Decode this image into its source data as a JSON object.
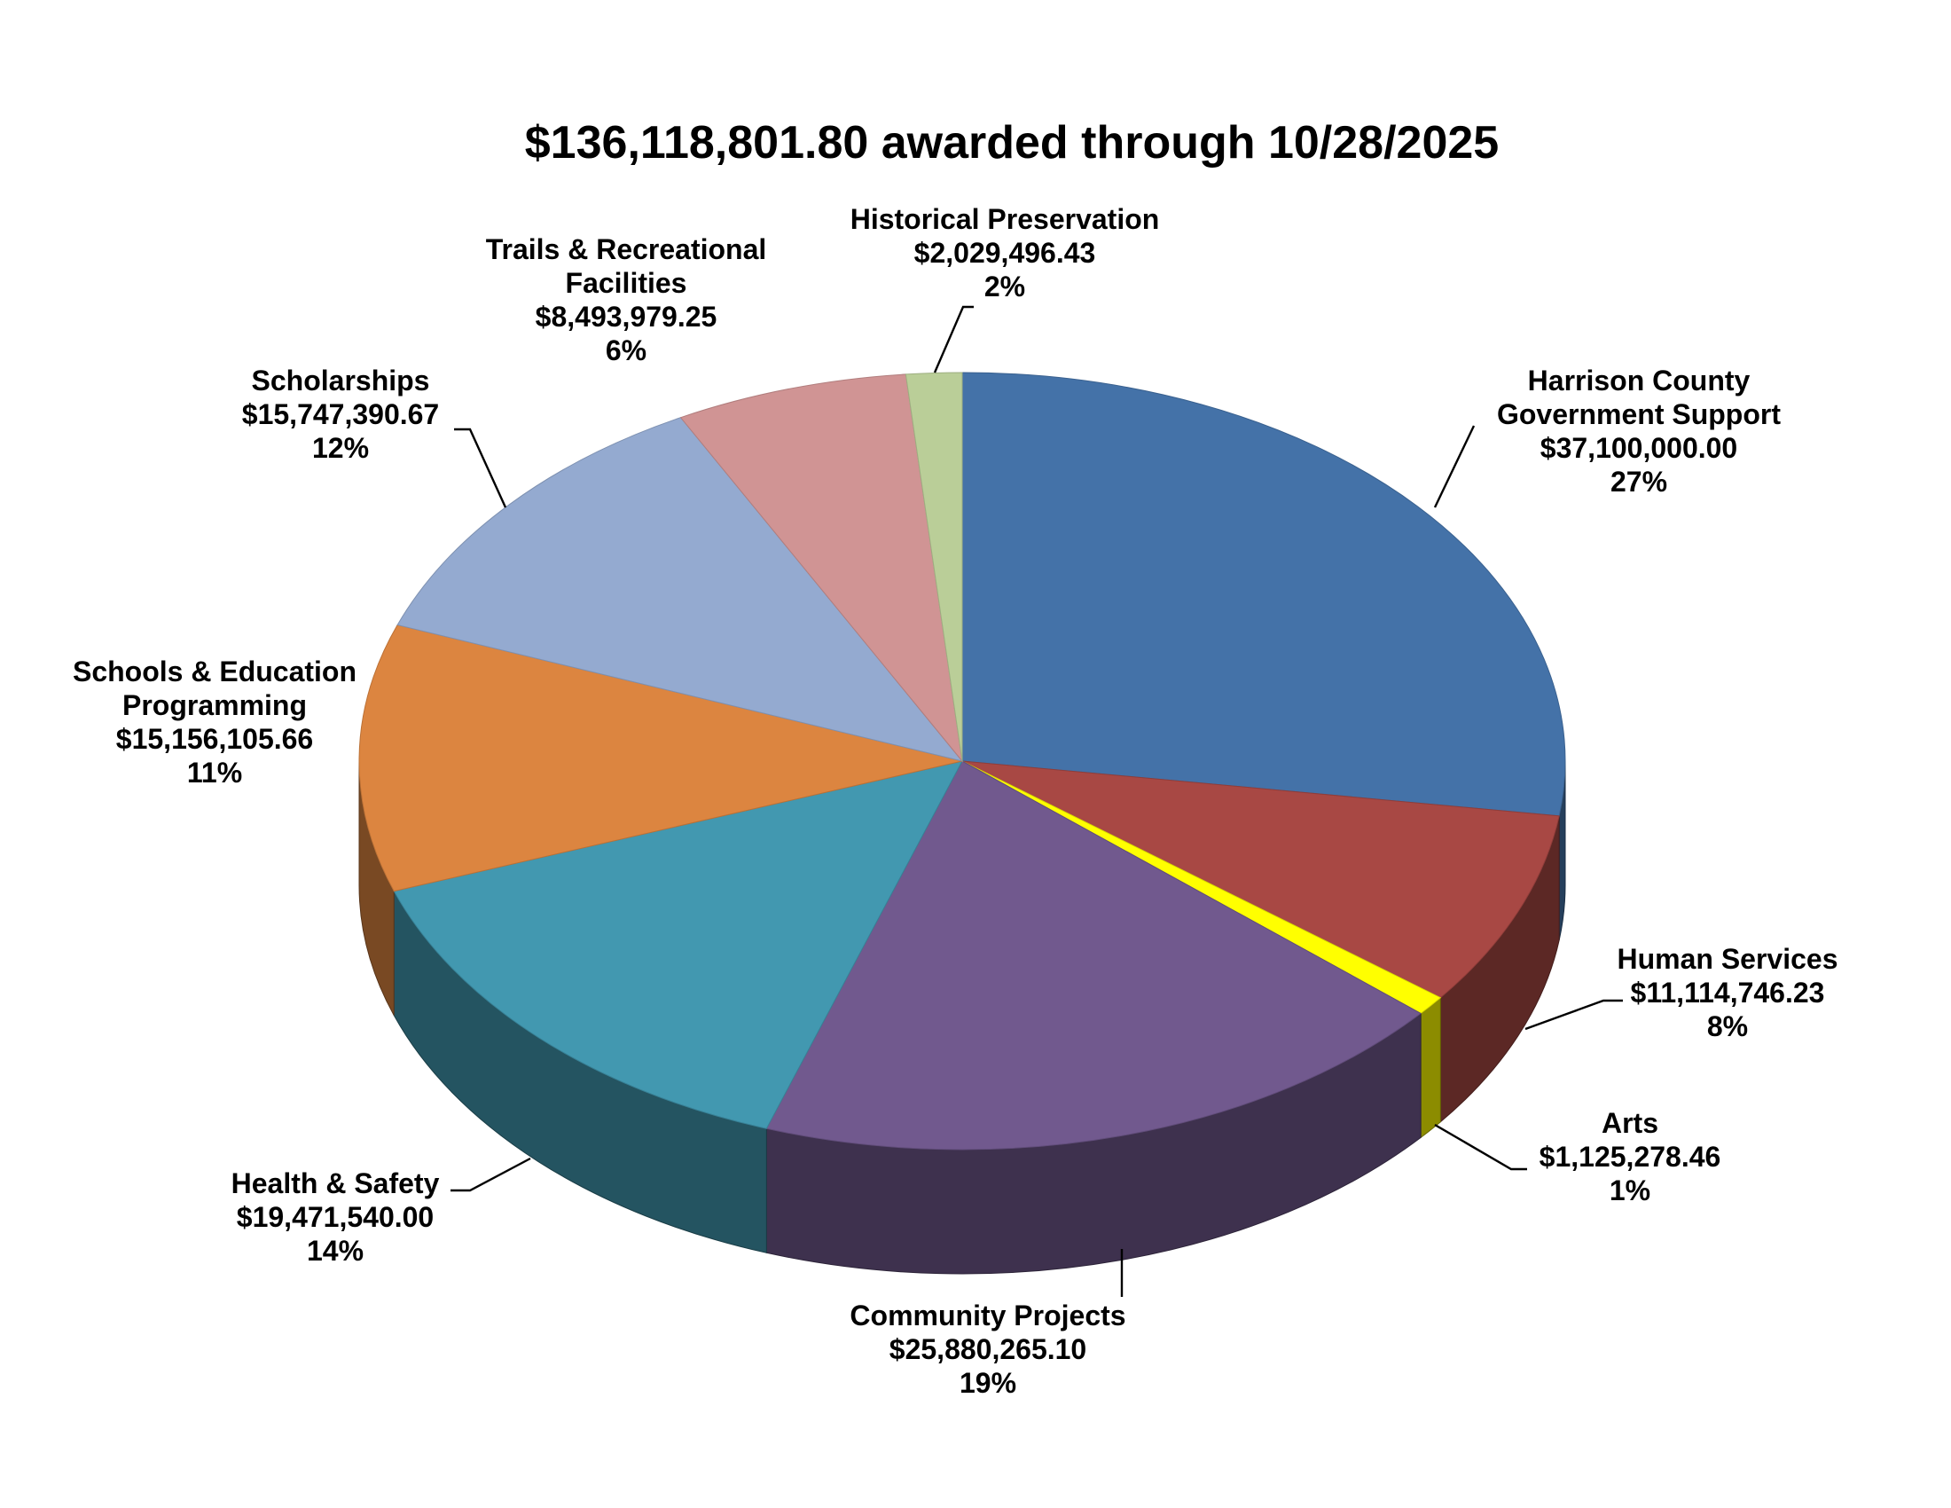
{
  "chart_data": {
    "type": "pie",
    "style": "3d",
    "title": "$136,118,801.80 awarded through 10/28/2025",
    "start_angle_deg": 0,
    "direction": "clockwise",
    "slices": [
      {
        "label_lines": [
          "Harrison County",
          "Government Support"
        ],
        "value": 37100000.0,
        "value_text": "$37,100,000.00",
        "percent_text": "27%",
        "color": "#4472A8"
      },
      {
        "label_lines": [
          "Human Services"
        ],
        "value": 11114746.23,
        "value_text": "$11,114,746.23",
        "percent_text": "8%",
        "color": "#A84844"
      },
      {
        "label_lines": [
          "Arts"
        ],
        "value": 1125278.46,
        "value_text": "$1,125,278.46",
        "percent_text": "1%",
        "color": "#FFFF00"
      },
      {
        "label_lines": [
          "Community Projects"
        ],
        "value": 25880265.1,
        "value_text": "$25,880,265.10",
        "percent_text": "19%",
        "color": "#71598E"
      },
      {
        "label_lines": [
          "Health & Safety"
        ],
        "value": 19471540.0,
        "value_text": "$19,471,540.00",
        "percent_text": "14%",
        "color": "#4298B0"
      },
      {
        "label_lines": [
          "Schools & Education",
          "Programming"
        ],
        "value": 15156105.66,
        "value_text": "$15,156,105.66",
        "percent_text": "11%",
        "color": "#DC8540"
      },
      {
        "label_lines": [
          "Scholarships"
        ],
        "value": 15747390.67,
        "value_text": "$15,747,390.67",
        "percent_text": "12%",
        "color": "#94AAD0"
      },
      {
        "label_lines": [
          "Trails & Recreational",
          "Facilities"
        ],
        "value": 8493979.25,
        "value_text": "$8,493,979.25",
        "percent_text": "6%",
        "color": "#D09494"
      },
      {
        "label_lines": [
          "Historical Preservation"
        ],
        "value": 2029496.43,
        "value_text": "$2,029,496.43",
        "percent_text": "2%",
        "color": "#BACE98"
      }
    ]
  }
}
